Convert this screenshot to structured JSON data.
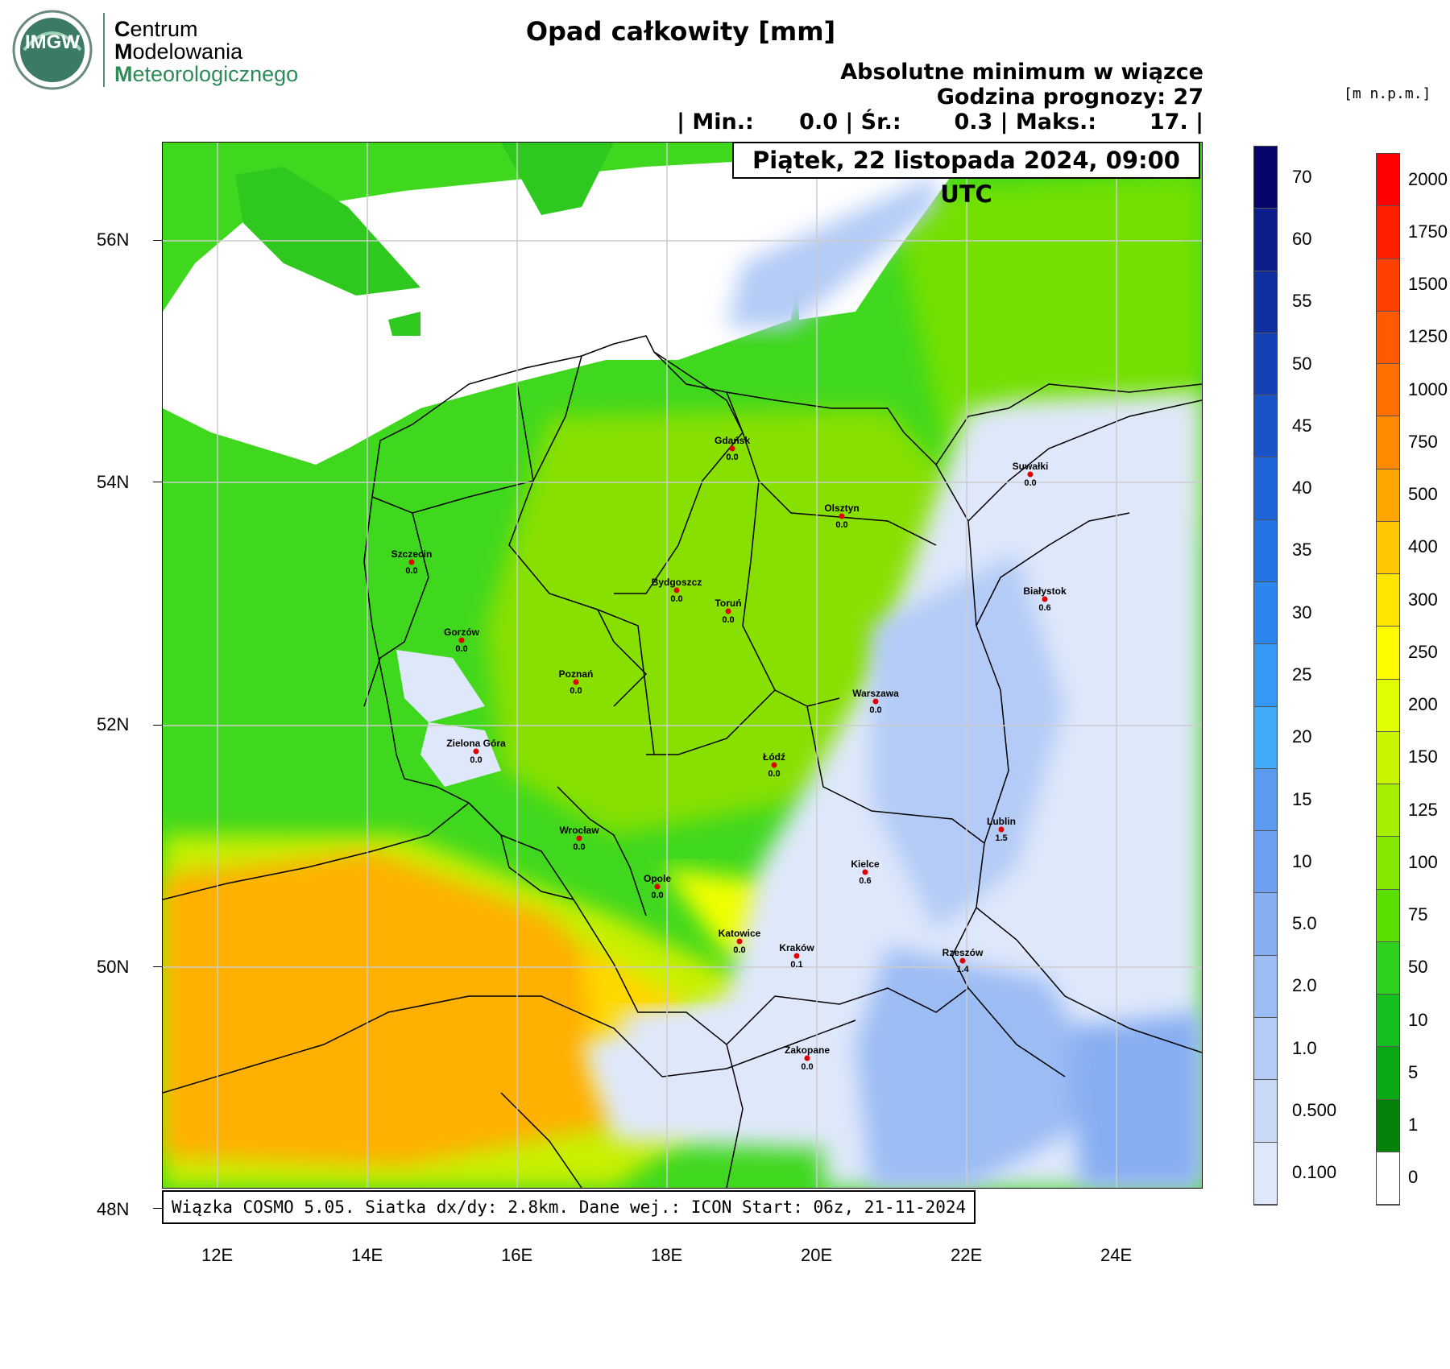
{
  "logo": {
    "badge_text": "IMGW",
    "line1_initial": "C",
    "line1_rest": "entrum",
    "line2_initial": "M",
    "line2_rest": "odelowania",
    "line3_initial": "M",
    "line3_rest": "eteorologicznego"
  },
  "title": "Opad całkowity [mm]",
  "header": {
    "line1": "Absolutne minimum w wiązce",
    "line2": "Godzina prognozy: 27",
    "stats": "| Min.:      0.0 | Śr.:       0.3 | Maks.:       17. |"
  },
  "datetime": "Piątek, 22 listopada 2024, 09:00 UTC",
  "elevation_unit": "[m  n.p.m.]",
  "footer": "Wiązka COSMO 5.05. Siatka dx/dy: 2.8km. Dane wej.: ICON Start: 06z, 21-11-2024",
  "axes": {
    "lat_labels": [
      "56N",
      "54N",
      "52N",
      "50N",
      "48N"
    ],
    "lon_labels": [
      "12E",
      "14E",
      "16E",
      "18E",
      "20E",
      "22E",
      "24E"
    ]
  },
  "cities": [
    {
      "name": "Gdańsk",
      "value": "0.0"
    },
    {
      "name": "Suwałki",
      "value": "0.0"
    },
    {
      "name": "Olsztyn",
      "value": "0.0"
    },
    {
      "name": "Szczecin",
      "value": "0.0"
    },
    {
      "name": "Bydgoszcz",
      "value": "0.0"
    },
    {
      "name": "Toruń",
      "value": "0.0"
    },
    {
      "name": "Białystok",
      "value": "0.6"
    },
    {
      "name": "Gorzów",
      "value": "0.0"
    },
    {
      "name": "Poznań",
      "value": "0.0"
    },
    {
      "name": "Warszawa",
      "value": "0.0"
    },
    {
      "name": "Zielona Góra",
      "value": "0.0"
    },
    {
      "name": "Łódź",
      "value": "0.0"
    },
    {
      "name": "Lublin",
      "value": "1.5"
    },
    {
      "name": "Wrocław",
      "value": "0.0"
    },
    {
      "name": "Kielce",
      "value": "0.6"
    },
    {
      "name": "Opole",
      "value": "0.0"
    },
    {
      "name": "Katowice",
      "value": "0.0"
    },
    {
      "name": "Kraków",
      "value": "0.1"
    },
    {
      "name": "Rzeszów",
      "value": "1.4"
    },
    {
      "name": "Zakopane",
      "value": "0.0"
    }
  ],
  "precip_scale": {
    "labels": [
      "70",
      "60",
      "55",
      "50",
      "45",
      "40",
      "35",
      "30",
      "25",
      "20",
      "15",
      "10",
      "5.0",
      "2.0",
      "1.0",
      "0.500",
      "0.100"
    ],
    "colors": [
      "#04046b",
      "#0b1e8c",
      "#0f2f9e",
      "#1441b3",
      "#1a52c8",
      "#1f63d9",
      "#2474e6",
      "#2b86ee",
      "#3399f5",
      "#3fa9fa",
      "#5a9af0",
      "#6f9ff0",
      "#86aef2",
      "#9cbcf4",
      "#b3cbf6",
      "#c8d9f8",
      "#dfe8fb"
    ]
  },
  "elevation_scale": {
    "labels": [
      "2000",
      "1750",
      "1500",
      "1250",
      "1000",
      "750",
      "500",
      "400",
      "300",
      "250",
      "200",
      "150",
      "125",
      "100",
      "75",
      "50",
      "10",
      "5",
      "1",
      "0"
    ],
    "colors": [
      "#ff0000",
      "#ff1e00",
      "#ff4000",
      "#ff5a00",
      "#ff7000",
      "#ff8a00",
      "#ffa500",
      "#ffc800",
      "#ffe600",
      "#fffc00",
      "#e0ff00",
      "#c8f500",
      "#a6ef00",
      "#86e800",
      "#5adf00",
      "#2ed21e",
      "#14c01e",
      "#0aa814",
      "#05820a",
      "#ffffff"
    ]
  }
}
